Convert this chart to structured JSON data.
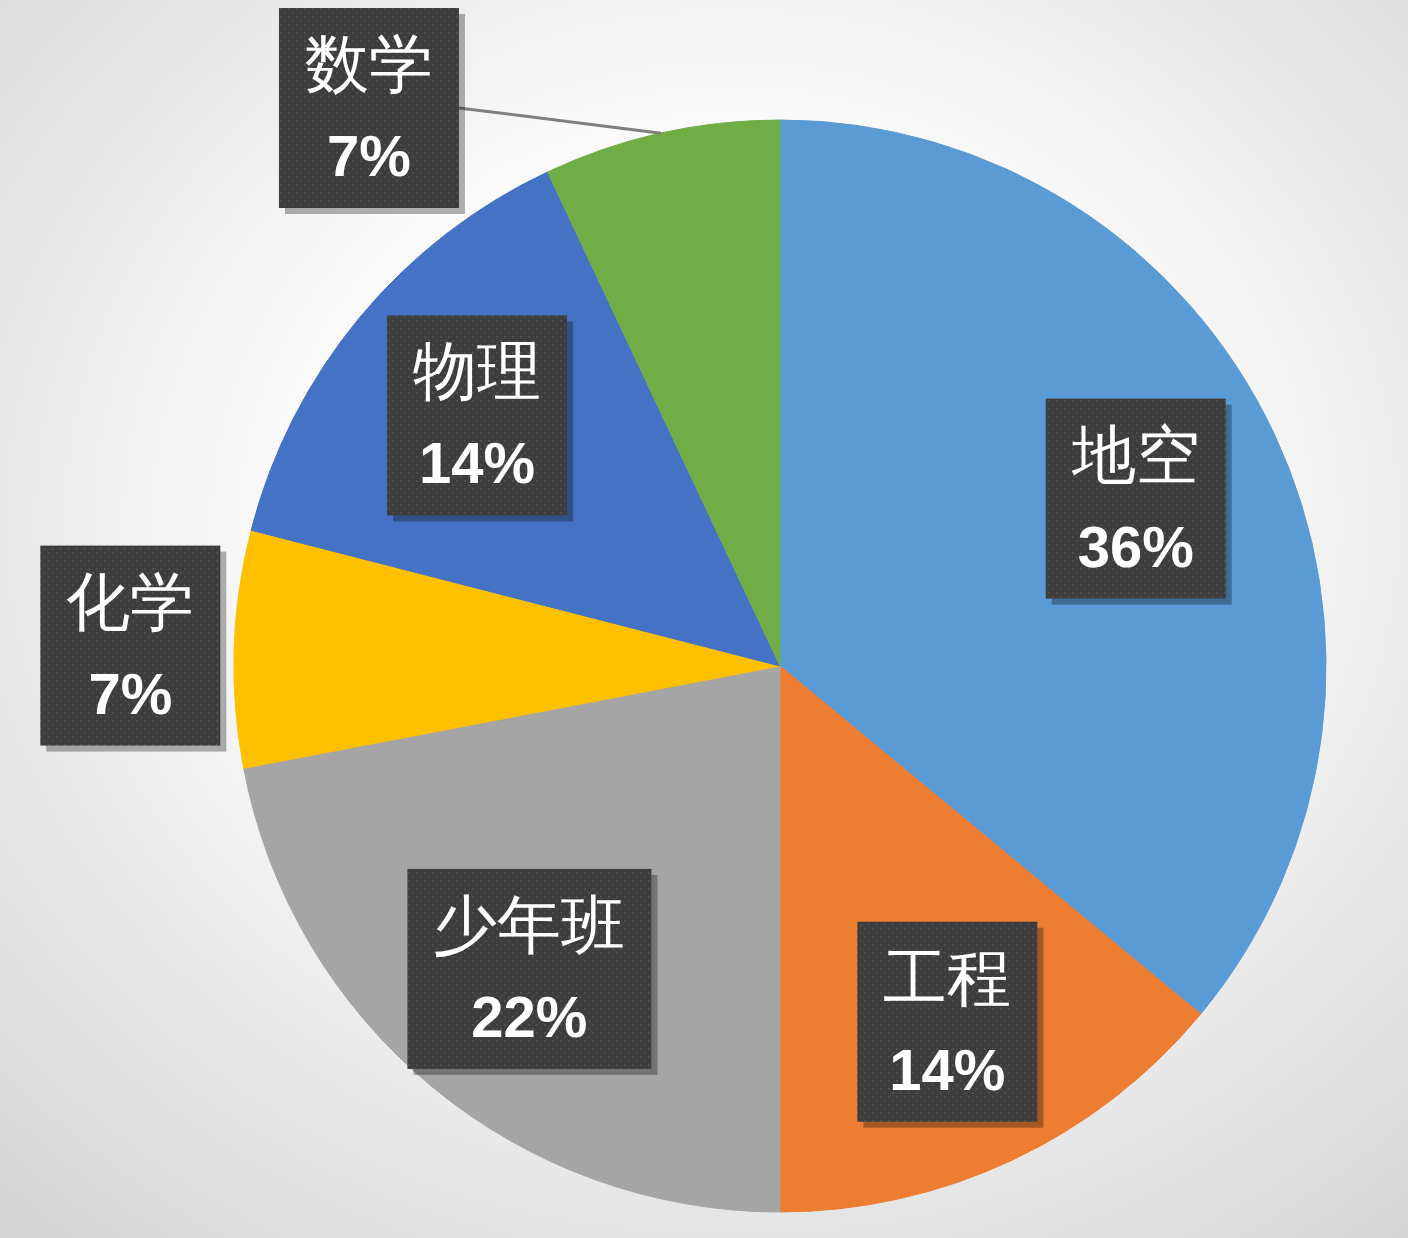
{
  "chart_data": {
    "type": "pie",
    "categories": [
      "地空",
      "工程",
      "少年班",
      "化学",
      "物理",
      "数学"
    ],
    "values": [
      36,
      14,
      22,
      7,
      14,
      7
    ],
    "colors": [
      "#5b9bd5",
      "#ed7d31",
      "#a5a5a5",
      "#ffc000",
      "#4472c4",
      "#70ad47"
    ],
    "value_labels": [
      "36%",
      "14%",
      "22%",
      "7%",
      "14%",
      "7%"
    ]
  }
}
